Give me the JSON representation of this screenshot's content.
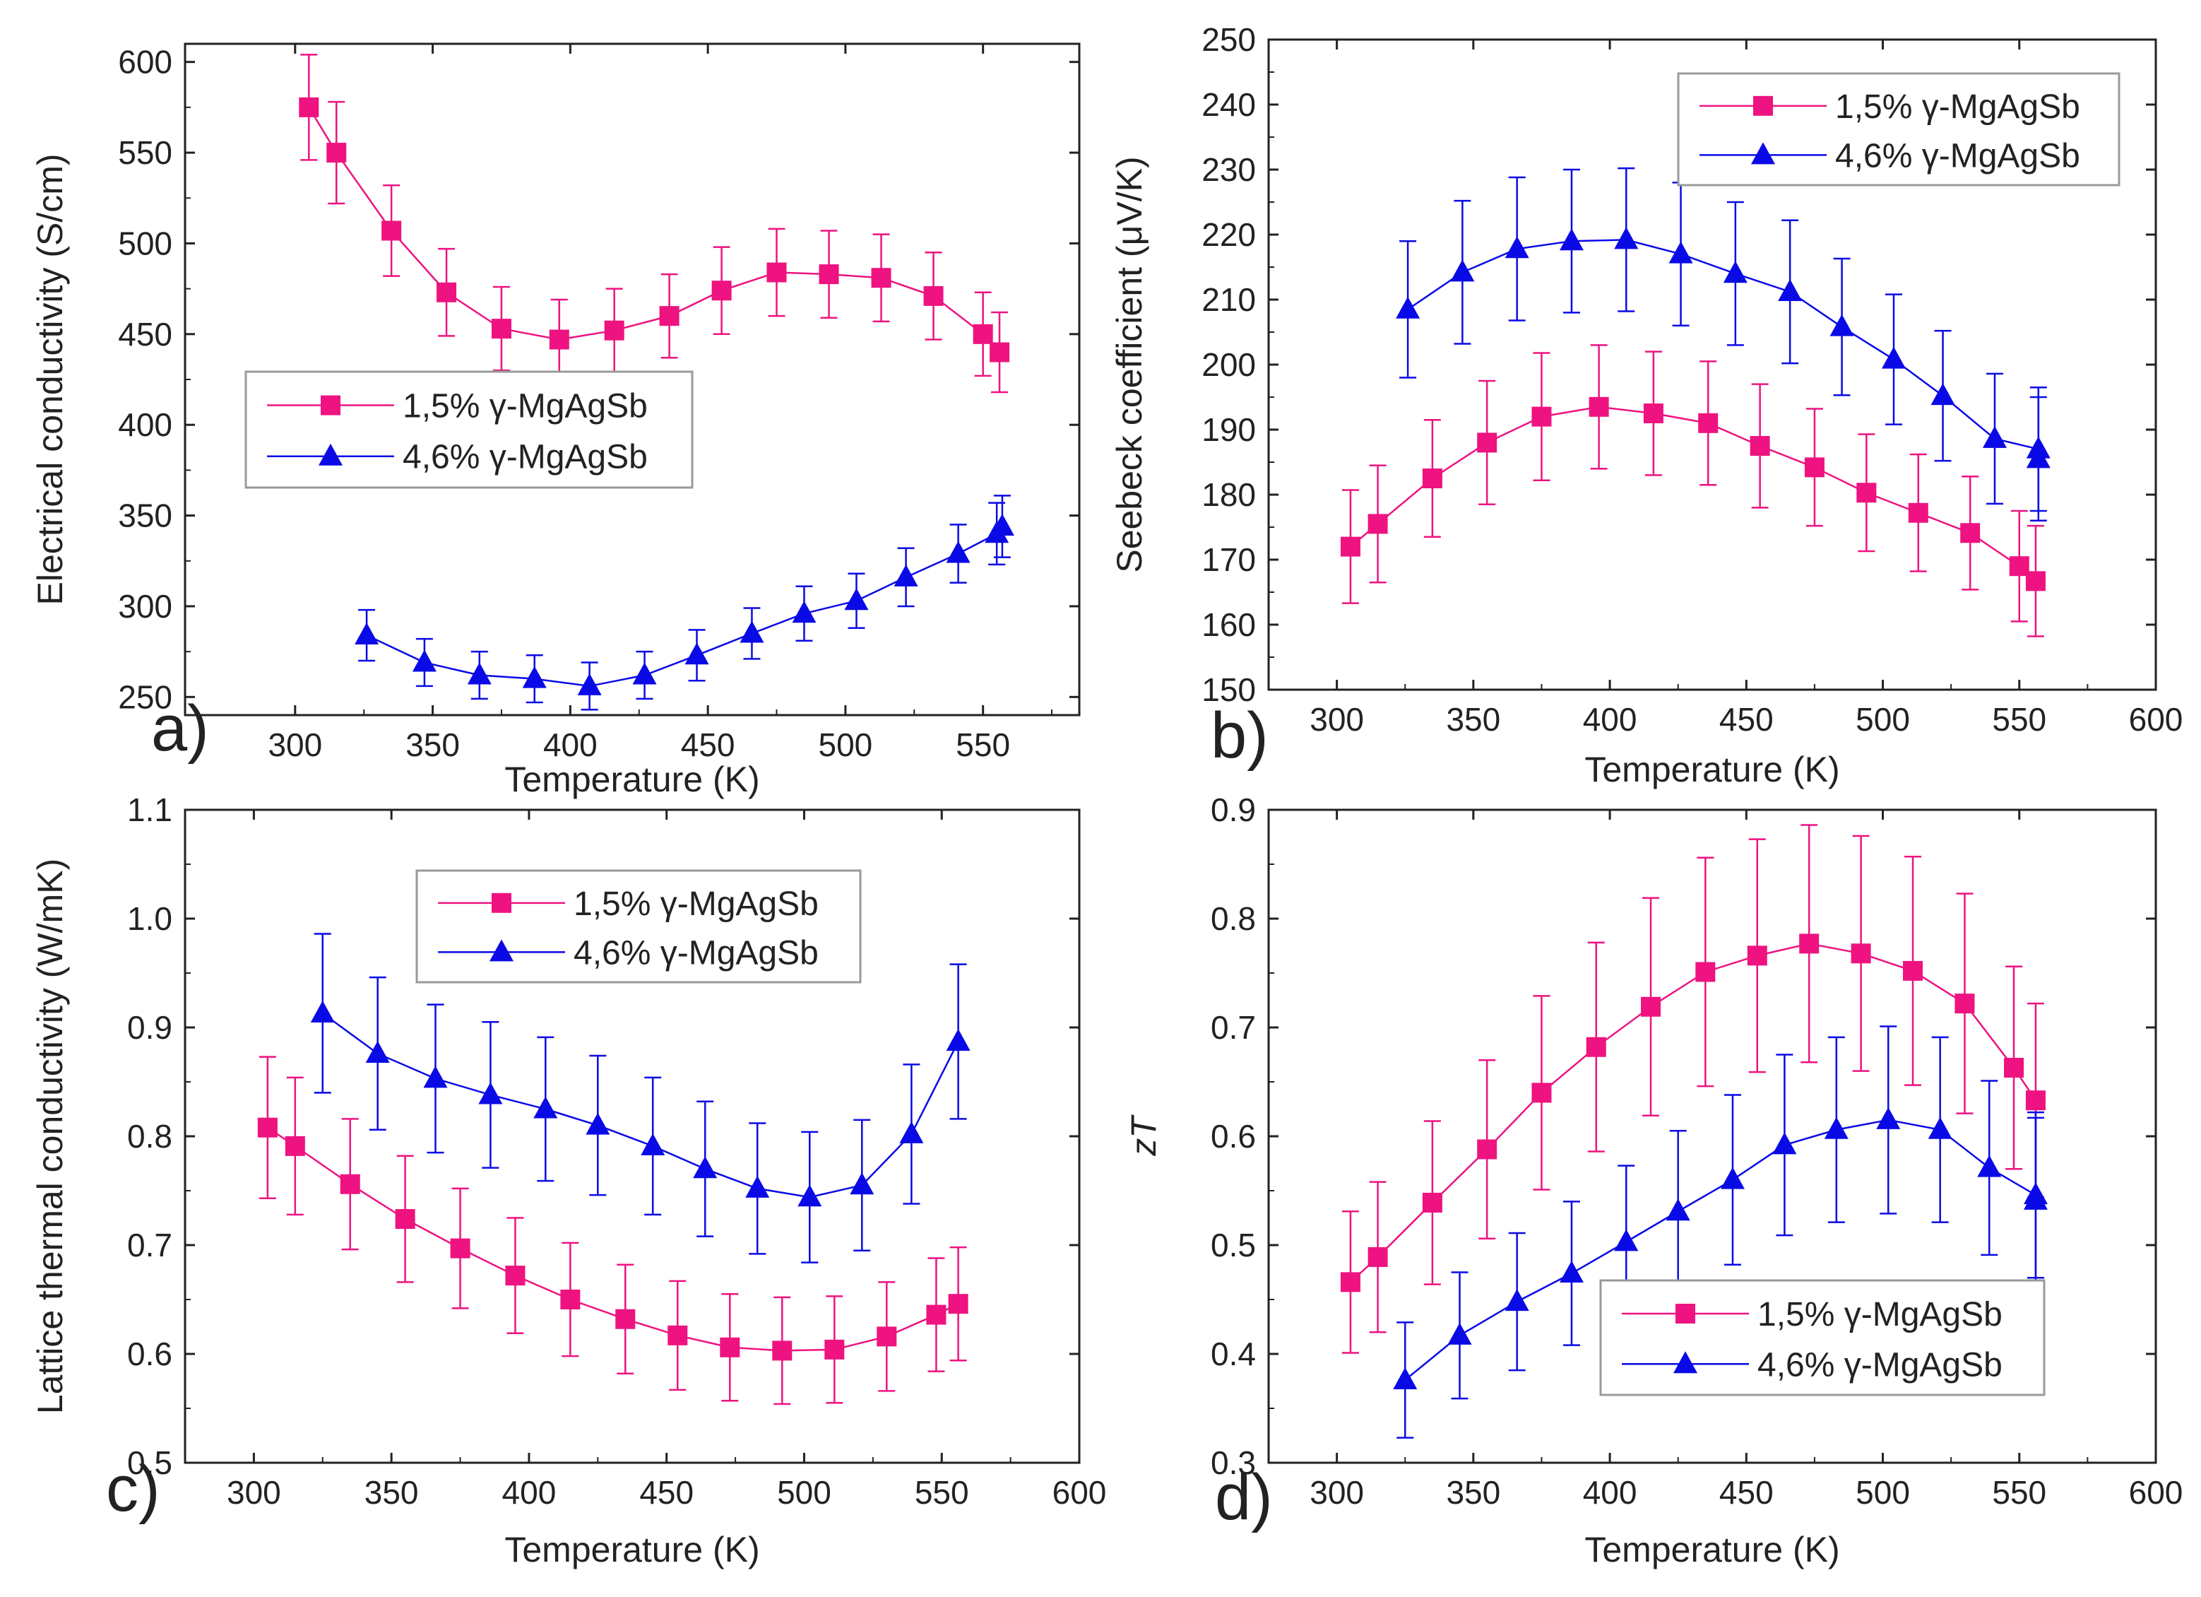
{
  "colors": {
    "series1": "#EE1380",
    "series2": "#0A0AE6",
    "axis": "#222222"
  },
  "chart_data": [
    {
      "panel_label": "a)",
      "type": "line",
      "title": "",
      "xlabel": "Temperature (K)",
      "ylabel": "Electrical conductivity (S/cm)",
      "xlim": [
        260,
        585
      ],
      "ylim": [
        240,
        610
      ],
      "xticks": [
        300,
        350,
        400,
        450,
        500,
        550
      ],
      "yticks": [
        250,
        300,
        350,
        400,
        450,
        500,
        550,
        600
      ],
      "xtick_labels": [
        "300",
        "350",
        "400",
        "450",
        "500",
        "550"
      ],
      "ytick_labels": [
        "250",
        "300",
        "350",
        "400",
        "450",
        "500",
        "550",
        "600"
      ],
      "legend_position": "center-left",
      "series": [
        {
          "name": "1,5% γ-MgAgSb",
          "marker": "square",
          "color": "#EE1380",
          "x": [
            305,
            315,
            335,
            355,
            375,
            396,
            416,
            436,
            455,
            475,
            494,
            513,
            532,
            550,
            556
          ],
          "y": [
            575,
            550,
            507,
            473,
            453,
            447,
            452,
            460,
            474,
            484,
            483,
            481,
            471,
            450,
            440
          ],
          "err": [
            29,
            28,
            25,
            24,
            23,
            22,
            23,
            23,
            24,
            24,
            24,
            24,
            24,
            23,
            22
          ]
        },
        {
          "name": "4,6% γ-MgAgSb",
          "marker": "triangle",
          "color": "#0A0AE6",
          "x": [
            326,
            347,
            367,
            387,
            407,
            427,
            446,
            466,
            485,
            504,
            522,
            541,
            555,
            557
          ],
          "y": [
            284,
            269,
            262,
            260,
            256,
            262,
            273,
            285,
            296,
            303,
            316,
            329,
            340,
            344
          ],
          "err": [
            14,
            13,
            13,
            13,
            13,
            13,
            14,
            14,
            15,
            15,
            16,
            16,
            17,
            17
          ]
        }
      ]
    },
    {
      "panel_label": "b)",
      "type": "line",
      "title": "",
      "xlabel": "Temperature (K)",
      "ylabel": "Seebeck coefficient (μV/K)",
      "xlim": [
        275,
        600
      ],
      "ylim": [
        150,
        250
      ],
      "xticks": [
        300,
        350,
        400,
        450,
        500,
        550,
        600
      ],
      "yticks": [
        150,
        160,
        170,
        180,
        190,
        200,
        210,
        220,
        230,
        240,
        250
      ],
      "xtick_labels": [
        "300",
        "350",
        "400",
        "450",
        "500",
        "550",
        "600"
      ],
      "ytick_labels": [
        "150",
        "160",
        "170",
        "180",
        "190",
        "200",
        "210",
        "220",
        "230",
        "240",
        "250"
      ],
      "legend_position": "top-right",
      "series": [
        {
          "name": "1,5% γ-MgAgSb",
          "marker": "square",
          "color": "#EE1380",
          "x": [
            305,
            315,
            335,
            355,
            375,
            396,
            416,
            436,
            455,
            475,
            494,
            513,
            532,
            550,
            556
          ],
          "y": [
            172,
            175.5,
            182.5,
            188,
            192,
            193.5,
            192.5,
            191,
            187.5,
            184.2,
            180.3,
            177.2,
            174.1,
            169,
            166.7
          ],
          "err": [
            8.7,
            9,
            9,
            9.5,
            9.8,
            9.5,
            9.5,
            9.5,
            9.5,
            9,
            9,
            9,
            8.7,
            8.5,
            8.5
          ]
        },
        {
          "name": "4,6% γ-MgAgSb",
          "marker": "triangle",
          "color": "#0A0AE6",
          "x": [
            326,
            346,
            366,
            386,
            406,
            426,
            446,
            466,
            485,
            504,
            522,
            541,
            557,
            557
          ],
          "y": [
            208.5,
            214.2,
            217.8,
            219,
            219.2,
            217,
            214,
            211.2,
            205.8,
            200.8,
            195.2,
            188.6,
            187,
            185.5
          ],
          "err": [
            10.5,
            11,
            11,
            11,
            11,
            11,
            11,
            11,
            10.5,
            10,
            10,
            10,
            9.5,
            9.5
          ]
        }
      ]
    },
    {
      "panel_label": "c)",
      "type": "line",
      "title": "",
      "xlabel": "Temperature (K)",
      "ylabel": "Lattice thermal conductivity (W/mK)",
      "xlim": [
        275,
        600
      ],
      "ylim": [
        0.5,
        1.1
      ],
      "xticks": [
        300,
        350,
        400,
        450,
        500,
        550,
        600
      ],
      "yticks": [
        0.5,
        0.6,
        0.7,
        0.8,
        0.9,
        1.0,
        1.1
      ],
      "xtick_labels": [
        "300",
        "350",
        "400",
        "450",
        "500",
        "550",
        "600"
      ],
      "ytick_labels": [
        "0.5",
        "0.6",
        "0.7",
        "0.8",
        "0.9",
        "1.0",
        "1.1"
      ],
      "legend_position": "top-center",
      "series": [
        {
          "name": "1,5% γ-MgAgSb",
          "marker": "square",
          "color": "#EE1380",
          "x": [
            305,
            315,
            335,
            355,
            375,
            395,
            415,
            435,
            454,
            473,
            492,
            511,
            530,
            548,
            556
          ],
          "y": [
            0.808,
            0.791,
            0.756,
            0.724,
            0.697,
            0.672,
            0.65,
            0.632,
            0.617,
            0.606,
            0.603,
            0.604,
            0.616,
            0.636,
            0.646
          ],
          "err": [
            0.065,
            0.063,
            0.06,
            0.058,
            0.055,
            0.053,
            0.052,
            0.05,
            0.05,
            0.049,
            0.049,
            0.049,
            0.05,
            0.052,
            0.052
          ]
        },
        {
          "name": "4,6% γ-MgAgSb",
          "marker": "triangle",
          "color": "#0A0AE6",
          "x": [
            325,
            345,
            366,
            386,
            406,
            425,
            445,
            464,
            483,
            502,
            521,
            539,
            556
          ],
          "y": [
            0.913,
            0.876,
            0.853,
            0.838,
            0.825,
            0.81,
            0.791,
            0.77,
            0.752,
            0.744,
            0.755,
            0.802,
            0.887
          ],
          "err": [
            0.073,
            0.07,
            0.068,
            0.067,
            0.066,
            0.064,
            0.063,
            0.062,
            0.06,
            0.06,
            0.06,
            0.064,
            0.071
          ]
        }
      ]
    },
    {
      "panel_label": "d)",
      "type": "line",
      "title": "",
      "xlabel": "Temperature (K)",
      "ylabel": "zT",
      "xlim": [
        275,
        600
      ],
      "ylim": [
        0.3,
        0.9
      ],
      "xticks": [
        300,
        350,
        400,
        450,
        500,
        550,
        600
      ],
      "yticks": [
        0.3,
        0.4,
        0.5,
        0.6,
        0.7,
        0.8,
        0.9
      ],
      "xtick_labels": [
        "300",
        "350",
        "400",
        "450",
        "500",
        "550",
        "600"
      ],
      "ytick_labels": [
        "0.3",
        "0.4",
        "0.5",
        "0.6",
        "0.7",
        "0.8",
        "0.9"
      ],
      "legend_position": "bottom-right",
      "series": [
        {
          "name": "1,5% γ-MgAgSb",
          "marker": "square",
          "color": "#EE1380",
          "x": [
            305,
            315,
            335,
            355,
            375,
            395,
            415,
            435,
            454,
            473,
            492,
            511,
            530,
            548,
            556
          ],
          "y": [
            0.466,
            0.489,
            0.539,
            0.588,
            0.64,
            0.682,
            0.719,
            0.751,
            0.766,
            0.777,
            0.768,
            0.752,
            0.722,
            0.663,
            0.633
          ],
          "err": [
            0.065,
            0.069,
            0.075,
            0.082,
            0.089,
            0.096,
            0.1,
            0.105,
            0.107,
            0.109,
            0.108,
            0.105,
            0.101,
            0.093,
            0.089
          ]
        },
        {
          "name": "4,6% γ-MgAgSb",
          "marker": "triangle",
          "color": "#0A0AE6",
          "x": [
            325,
            345,
            366,
            386,
            406,
            425,
            445,
            464,
            483,
            502,
            521,
            539,
            556,
            556
          ],
          "y": [
            0.376,
            0.417,
            0.448,
            0.474,
            0.503,
            0.531,
            0.56,
            0.592,
            0.606,
            0.615,
            0.606,
            0.571,
            0.546,
            0.541
          ],
          "err": [
            0.053,
            0.058,
            0.063,
            0.066,
            0.07,
            0.074,
            0.078,
            0.083,
            0.085,
            0.086,
            0.085,
            0.08,
            0.076,
            0.076
          ]
        }
      ]
    }
  ]
}
